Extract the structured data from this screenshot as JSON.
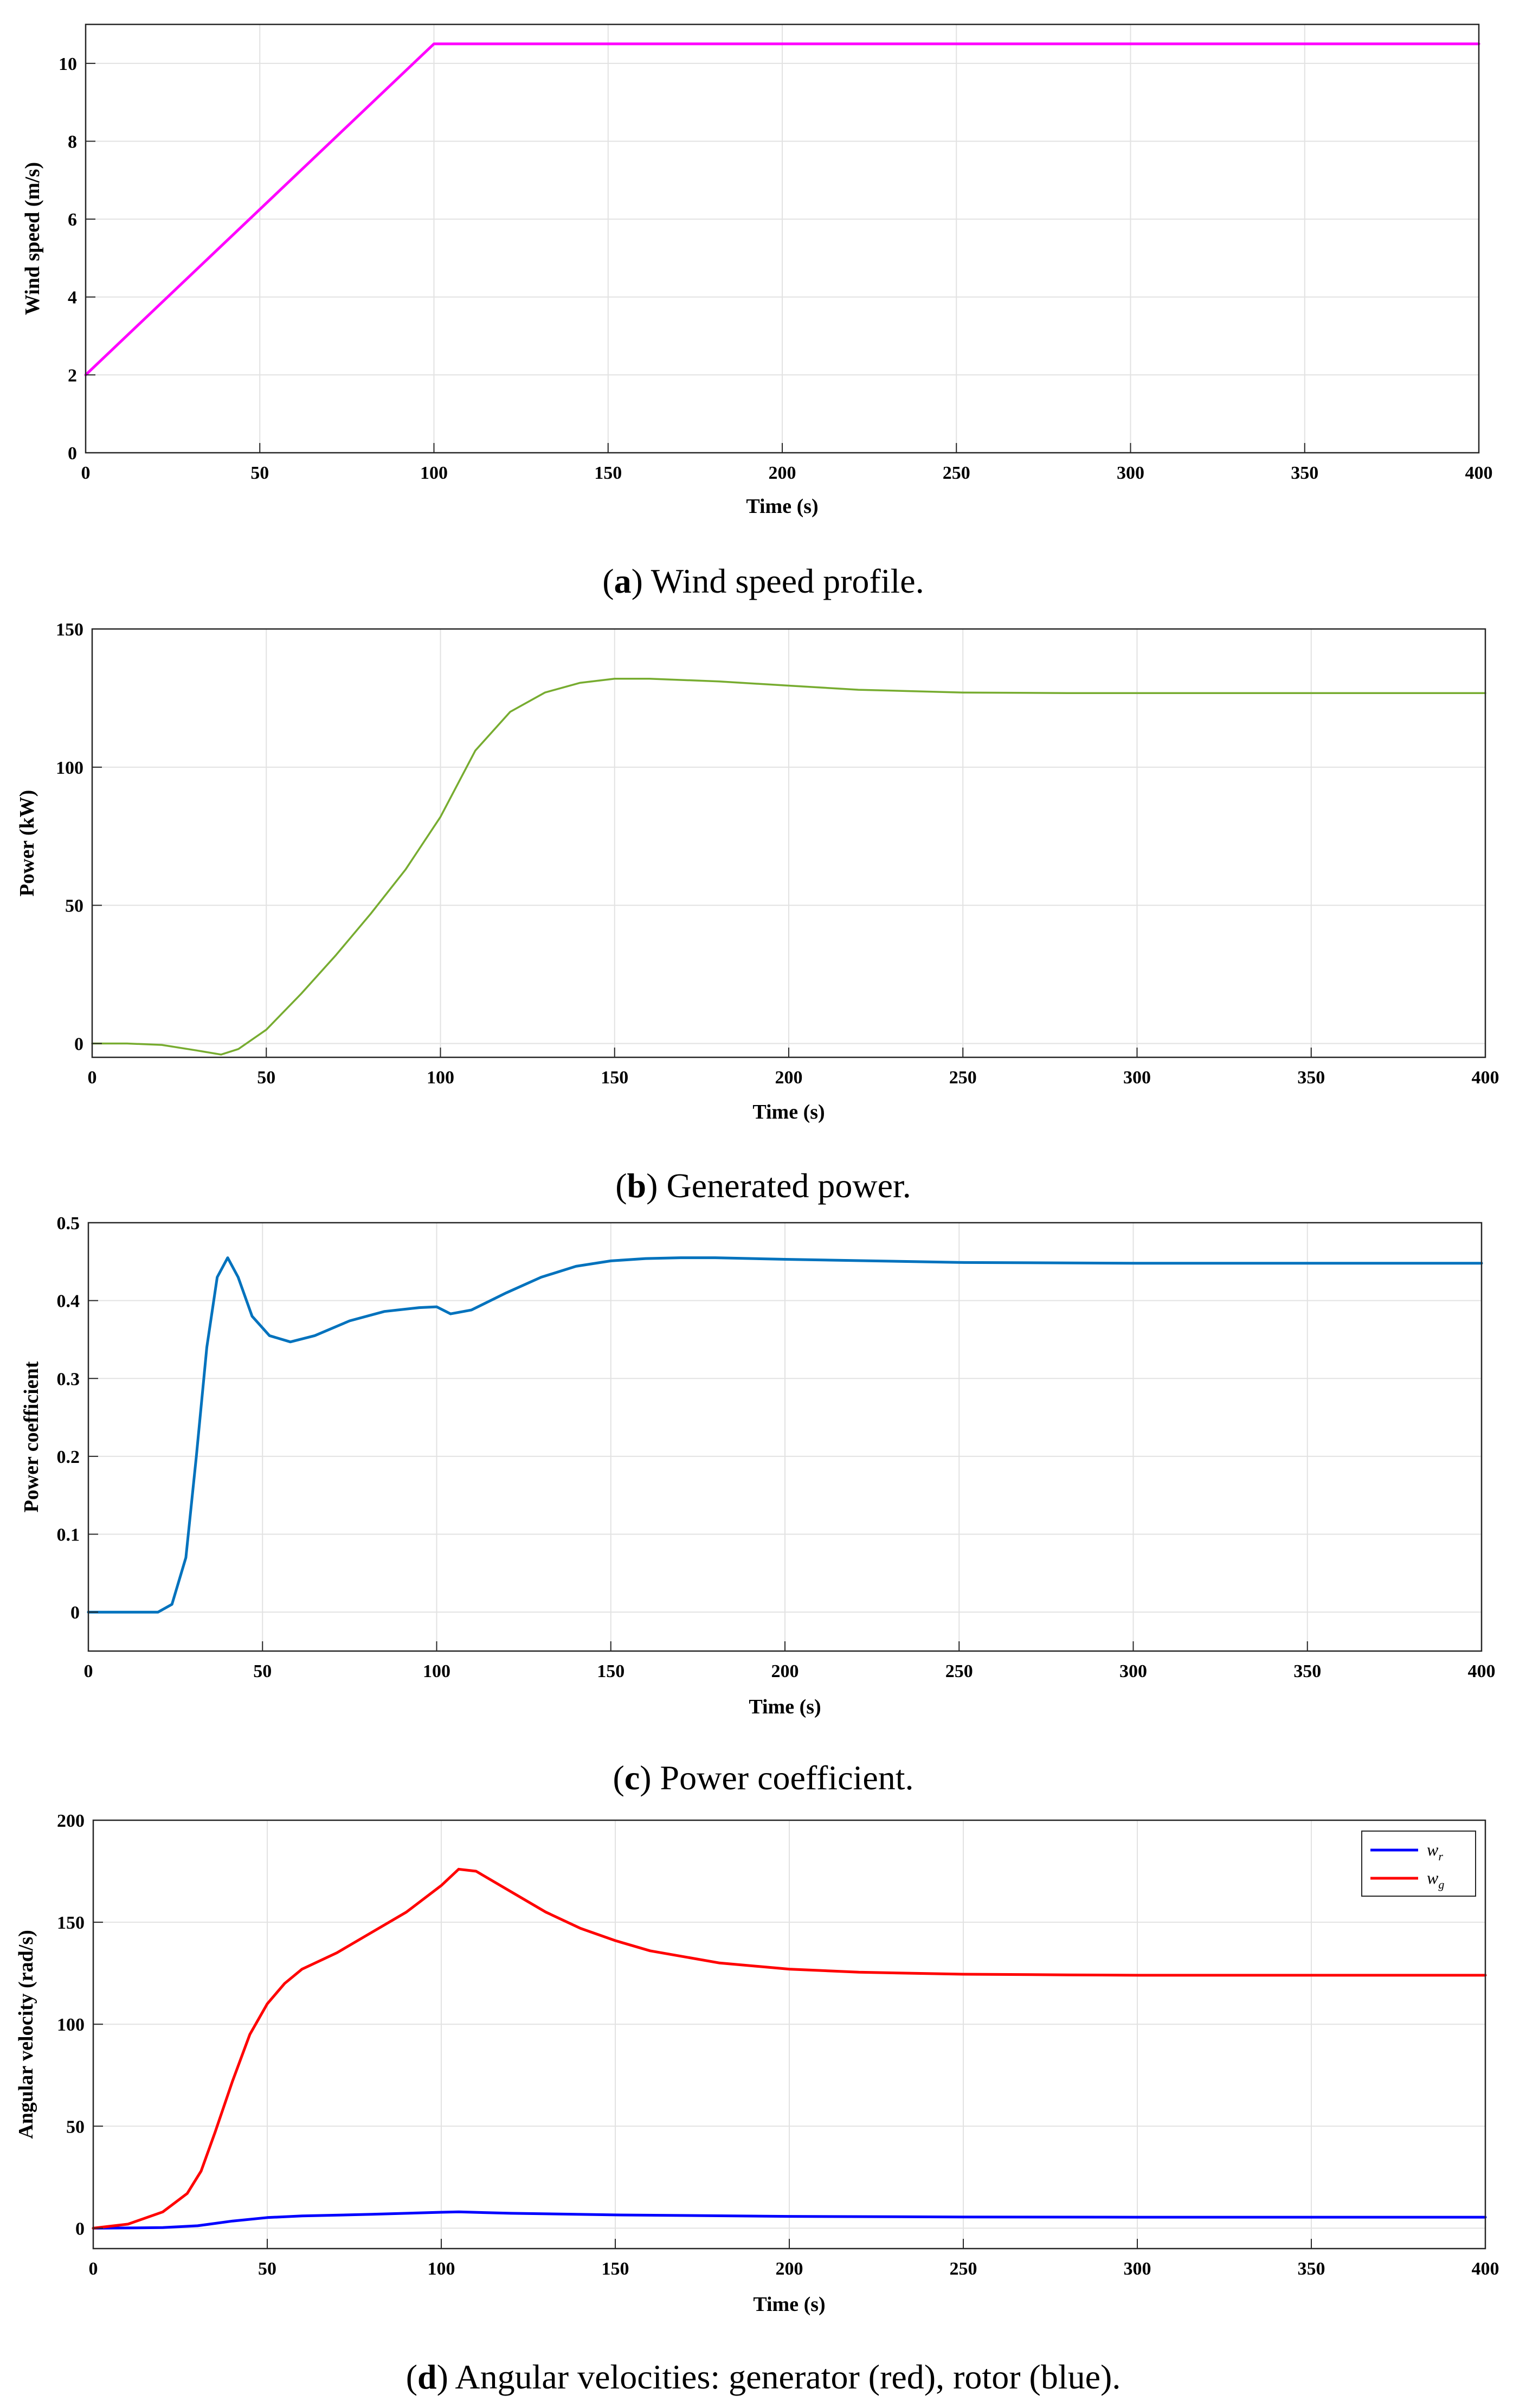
{
  "chart_data": [
    {
      "type": "line",
      "panel": "a",
      "caption_letter": "a",
      "caption_text": " Wind speed profile.",
      "xlabel": "Time (s)",
      "ylabel": "Wind speed (m/s)",
      "xlim": [
        0,
        400
      ],
      "ylim": [
        0,
        11
      ],
      "xticks": [
        0,
        50,
        100,
        150,
        200,
        250,
        300,
        350,
        400
      ],
      "yticks": [
        0,
        2,
        4,
        6,
        8,
        10
      ],
      "grid": true,
      "series": [
        {
          "name": "wind speed",
          "color": "#ff00ff",
          "stroke": 5,
          "x": [
            0,
            100,
            400
          ],
          "y": [
            2,
            10.5,
            10.5
          ]
        }
      ]
    },
    {
      "type": "line",
      "panel": "b",
      "caption_letter": "b",
      "caption_text": " Generated power.",
      "xlabel": "Time (s)",
      "ylabel": "Power (kW)",
      "xlim": [
        0,
        400
      ],
      "ylim": [
        -5,
        150
      ],
      "xticks": [
        0,
        50,
        100,
        150,
        200,
        250,
        300,
        350,
        400
      ],
      "yticks": [
        0,
        50,
        100,
        150
      ],
      "grid": true,
      "series": [
        {
          "name": "power",
          "color": "#77ac30",
          "stroke": 3.5,
          "x": [
            0,
            10,
            20,
            30,
            37,
            42,
            50,
            60,
            70,
            80,
            90,
            100,
            110,
            120,
            130,
            140,
            150,
            160,
            180,
            200,
            220,
            250,
            280,
            300,
            350,
            400
          ],
          "y": [
            0,
            0,
            -0.5,
            -2.5,
            -4,
            -2,
            5,
            18,
            32,
            47,
            63,
            82,
            106,
            120,
            127,
            130.5,
            132,
            132,
            131,
            129.5,
            128,
            127,
            126.8,
            126.8,
            126.8,
            126.8
          ]
        }
      ]
    },
    {
      "type": "line",
      "panel": "c",
      "caption_letter": "c",
      "caption_text": " Power coefficient.",
      "xlabel": "Time (s)",
      "ylabel": "Power coefficient",
      "xlim": [
        0,
        400
      ],
      "ylim": [
        -0.05,
        0.5
      ],
      "xticks": [
        0,
        50,
        100,
        150,
        200,
        250,
        300,
        350,
        400
      ],
      "yticks": [
        0,
        0.1,
        0.2,
        0.3,
        0.4,
        0.5
      ],
      "grid": true,
      "series": [
        {
          "name": "power coefficient",
          "color": "#0072bd",
          "stroke": 5,
          "x": [
            0,
            20,
            24,
            28,
            31,
            34,
            37,
            40,
            43,
            47,
            52,
            58,
            65,
            75,
            85,
            95,
            100,
            104,
            110,
            120,
            130,
            140,
            150,
            160,
            170,
            180,
            200,
            250,
            300,
            350,
            400
          ],
          "y": [
            0,
            0,
            0.01,
            0.07,
            0.2,
            0.34,
            0.43,
            0.455,
            0.43,
            0.38,
            0.355,
            0.347,
            0.355,
            0.374,
            0.386,
            0.391,
            0.392,
            0.383,
            0.388,
            0.41,
            0.43,
            0.444,
            0.451,
            0.454,
            0.455,
            0.455,
            0.453,
            0.449,
            0.448,
            0.448,
            0.448
          ]
        }
      ]
    },
    {
      "type": "line",
      "panel": "d",
      "caption_letter": "d",
      "caption_text": " Angular velocities: generator (red), rotor (blue).",
      "xlabel": "Time (s)",
      "ylabel": "Angular velocity (rad/s)",
      "xlim": [
        0,
        400
      ],
      "ylim": [
        -10,
        200
      ],
      "xticks": [
        0,
        50,
        100,
        150,
        200,
        250,
        300,
        350,
        400
      ],
      "yticks": [
        0,
        50,
        100,
        150,
        200
      ],
      "grid": true,
      "legend_position": "top-right",
      "series": [
        {
          "name": "w_r",
          "legend_main": "w",
          "legend_sub": "r",
          "color": "#0000ff",
          "stroke": 5,
          "x": [
            0,
            20,
            30,
            40,
            50,
            60,
            80,
            100,
            105,
            120,
            150,
            200,
            250,
            300,
            400
          ],
          "y": [
            0,
            0.3,
            1.2,
            3.5,
            5.2,
            6,
            6.8,
            7.8,
            8,
            7.3,
            6.5,
            5.8,
            5.5,
            5.4,
            5.4
          ]
        },
        {
          "name": "w_g",
          "legend_main": "w",
          "legend_sub": "g",
          "color": "#ff0000",
          "stroke": 5,
          "x": [
            0,
            10,
            20,
            27,
            31,
            35,
            40,
            45,
            50,
            55,
            60,
            70,
            80,
            90,
            100,
            105,
            110,
            120,
            130,
            140,
            150,
            160,
            180,
            200,
            220,
            250,
            280,
            300,
            350,
            400
          ],
          "y": [
            0,
            2,
            8,
            17,
            28,
            47,
            72,
            95,
            110,
            120,
            127,
            135,
            145,
            155,
            168,
            176,
            175,
            165,
            155,
            147,
            141,
            136,
            130,
            127,
            125.5,
            124.5,
            124.2,
            124,
            124,
            124
          ]
        }
      ]
    }
  ]
}
